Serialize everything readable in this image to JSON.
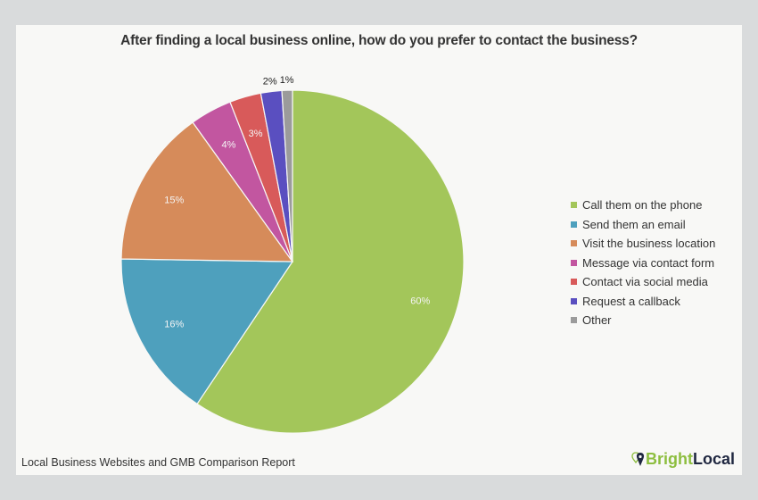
{
  "chart_data": {
    "type": "pie",
    "title": "After finding a local business online, how do you prefer to contact the business?",
    "categories": [
      "Call them on the phone",
      "Send them an email",
      "Visit the business location",
      "Message via contact form",
      "Contact via social media",
      "Request a callback",
      "Other"
    ],
    "values": [
      60,
      16,
      15,
      4,
      3,
      2,
      1
    ],
    "labels": [
      "60%",
      "16%",
      "15%",
      "4%",
      "3%",
      "2%",
      "1%"
    ],
    "colors": [
      "#a3c65a",
      "#4ea0bd",
      "#d68b5a",
      "#c256a0",
      "#d85a5a",
      "#5a4fc0",
      "#9b9b9b"
    ],
    "start_angle_deg": 0,
    "direction": "clockwise",
    "legend_position": "right"
  },
  "footer": {
    "source": "Local Business Websites and GMB Comparison Report"
  },
  "brand": {
    "part1": "Bright",
    "part2": "Local"
  }
}
